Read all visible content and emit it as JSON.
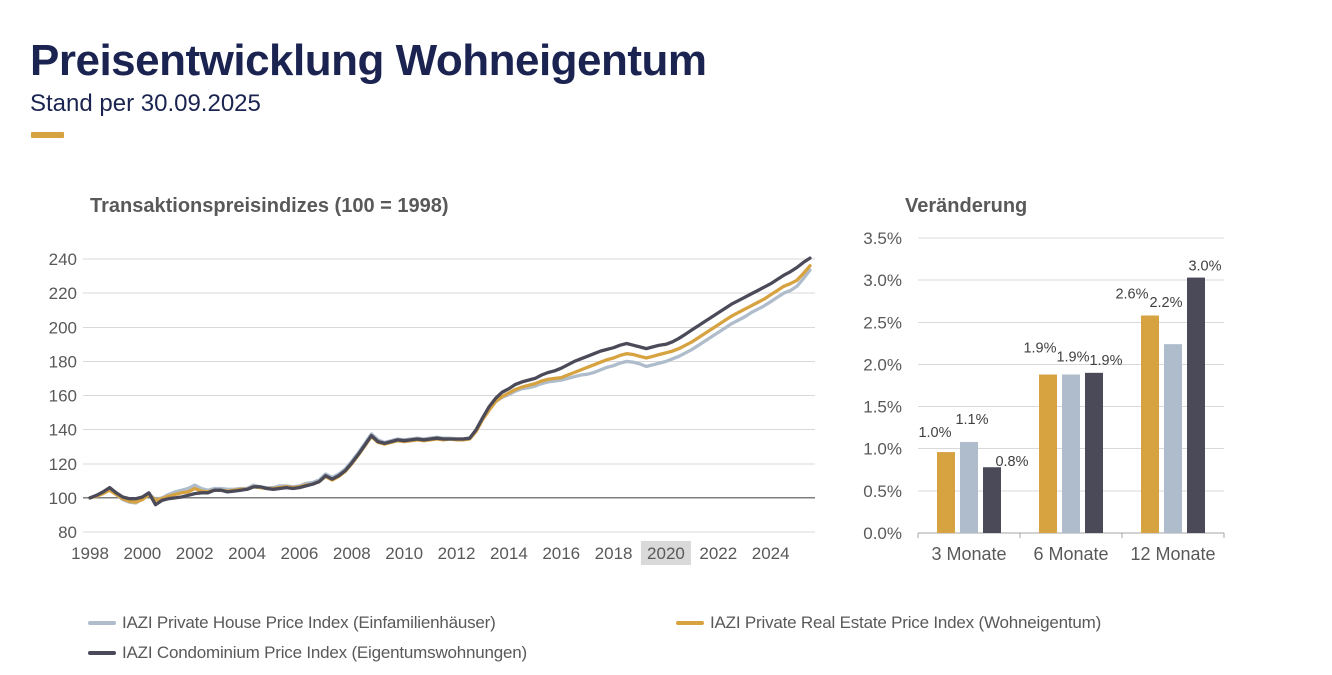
{
  "header": {
    "title": "Preisentwicklung Wohneigentum",
    "subtitle": "Stand per 30.09.2025"
  },
  "colors": {
    "navy": "#1b2451",
    "text_gray": "#595959",
    "bar_label_gray": "#404040",
    "grid": "#d9d9d9",
    "baseline_gray": "#7f7f7f",
    "axis_gray": "#a6a6a6",
    "tick_highlight_bg": "#d9d9d9",
    "house": "#aebccb",
    "realestate": "#d7a240",
    "condo": "#4a4a59"
  },
  "chart_data": [
    {
      "type": "line",
      "title": "Transaktionspreisindizes (100 = 1998)",
      "x_start": 1998,
      "x_step": 0.25,
      "x_end": 2025.5,
      "ylim": [
        80,
        240
      ],
      "y_tick_step": 20,
      "y_tick_labels": [
        "240",
        "220",
        "200",
        "180",
        "160",
        "140",
        "120",
        "100",
        "80"
      ],
      "x_tick_labels": [
        "1998",
        "2000",
        "2002",
        "2004",
        "2006",
        "2008",
        "2010",
        "2012",
        "2014",
        "2016",
        "2018",
        "2020",
        "2022",
        "2024"
      ],
      "highlighted_x_tick": "2020",
      "baseline_value": 100,
      "grid": true,
      "series": [
        {
          "name": "IAZI Private House Price Index (Einfamilienhäuser)",
          "color_key": "house",
          "values": [
            100,
            101,
            103,
            105,
            102,
            99,
            97.5,
            97,
            99.5,
            102.5,
            99,
            100,
            102,
            103.5,
            104.5,
            105.5,
            107.5,
            105.5,
            104.5,
            105.5,
            105.5,
            105,
            105,
            105.5,
            105.5,
            107.5,
            106.5,
            106,
            106,
            107,
            107,
            106.5,
            107,
            108.5,
            109,
            110.5,
            114,
            112,
            114,
            117,
            121.5,
            126.5,
            132,
            137.5,
            134,
            132.5,
            133.5,
            134.5,
            134,
            134.5,
            135,
            134.5,
            135,
            135.5,
            135,
            135,
            134.5,
            134.5,
            135,
            139.5,
            146.5,
            152,
            156.5,
            159,
            160.5,
            162.5,
            164,
            164.5,
            165.5,
            167,
            168,
            168.5,
            169,
            170,
            171,
            172,
            172.5,
            173.5,
            175,
            176.5,
            177.5,
            179,
            180,
            179.5,
            178.5,
            177,
            178,
            179,
            180,
            181.5,
            183,
            185,
            187,
            189.5,
            192,
            194.5,
            197,
            199.5,
            202,
            204,
            206,
            208.5,
            210.5,
            212.5,
            215,
            217.5,
            220,
            221.5,
            224,
            228.5,
            233.5
          ]
        },
        {
          "name": "IAZI Private Real Estate Price Index (Wohneigentum)",
          "color_key": "realestate",
          "values": [
            100,
            101,
            102.5,
            104.5,
            102,
            99.5,
            98,
            97.5,
            99,
            102,
            98.5,
            99.5,
            101,
            102,
            103,
            103.5,
            105.5,
            104,
            103.5,
            104.5,
            104.5,
            104,
            104.5,
            105,
            105,
            106.5,
            106,
            105.5,
            105.5,
            106,
            106.5,
            106,
            106.5,
            107.5,
            108,
            109.5,
            112.5,
            110.5,
            112.5,
            115.5,
            120,
            125,
            130.5,
            136,
            132.5,
            131.5,
            132.5,
            133.5,
            133,
            133.5,
            134,
            133.5,
            134,
            134.5,
            134,
            134.5,
            134,
            134,
            134.5,
            139,
            146,
            151.5,
            156.5,
            159.5,
            161.5,
            163.5,
            165,
            166,
            167,
            168.5,
            169.5,
            170,
            170.5,
            172,
            173.5,
            175,
            176.5,
            178,
            179.5,
            181,
            182,
            183.5,
            184.5,
            184,
            183,
            182,
            183,
            184,
            185,
            186,
            187.5,
            189.5,
            191.5,
            194,
            196.5,
            199,
            201.5,
            204,
            206.5,
            208.5,
            210.5,
            212.5,
            214.5,
            216.5,
            219,
            221.5,
            224,
            225.5,
            227.5,
            231.5,
            236
          ]
        },
        {
          "name": "IAZI Condominium Price Index (Eigentumswohnungen)",
          "color_key": "condo",
          "values": [
            100,
            101.5,
            103.5,
            106,
            103,
            100.5,
            99.5,
            99.5,
            100.5,
            103,
            96,
            98.5,
            99.5,
            100,
            100.5,
            101.5,
            102.5,
            103,
            103,
            104.5,
            104.5,
            103.5,
            104,
            104.5,
            105,
            106.5,
            106.5,
            105.5,
            105,
            105.5,
            106,
            105.5,
            106,
            107,
            108,
            109.5,
            113,
            111,
            113,
            116,
            120.5,
            125.5,
            131,
            136.5,
            133,
            132,
            133,
            134,
            133.5,
            134,
            134.5,
            134,
            134.5,
            135,
            134.5,
            134.5,
            134.5,
            134.5,
            135,
            140,
            147,
            153.5,
            158.5,
            162,
            164,
            166.5,
            168,
            169,
            170,
            172,
            173.5,
            174.5,
            176,
            178,
            180,
            181.5,
            183,
            184.5,
            186,
            187,
            188,
            189.5,
            190.5,
            189.5,
            188.5,
            187.5,
            188.5,
            189.5,
            190,
            191.5,
            193.5,
            196,
            198.5,
            201,
            203.5,
            206,
            208.5,
            211,
            213.5,
            215.5,
            217.5,
            219.5,
            221.5,
            223.5,
            225.5,
            228,
            230.5,
            232.5,
            235,
            238,
            240.5
          ]
        }
      ]
    },
    {
      "type": "bar",
      "title": "Veränderung",
      "categories": [
        "3 Monate",
        "6 Monate",
        "12 Monate"
      ],
      "ylim": [
        0,
        3.5
      ],
      "y_tick_labels": [
        "3.5%",
        "3.0%",
        "2.5%",
        "2.0%",
        "1.5%",
        "1.0%",
        "0.5%",
        "0.0%"
      ],
      "grid": true,
      "series": [
        {
          "name": "IAZI Private Real Estate Price Index (Wohneigentum)",
          "color_key": "realestate",
          "values": [
            0.96,
            1.88,
            2.58
          ],
          "labels": [
            "1.0%",
            "1.9%",
            "2.6%"
          ]
        },
        {
          "name": "IAZI Private House Price Index (Einfamilienhäuser)",
          "color_key": "house",
          "values": [
            1.08,
            1.88,
            2.24
          ],
          "labels": [
            "1.1%",
            "1.9%",
            "2.2%"
          ]
        },
        {
          "name": "IAZI Condominium Price Index (Eigentumswohnungen)",
          "color_key": "condo",
          "values": [
            0.78,
            1.9,
            3.03
          ],
          "labels": [
            "0.8%",
            "1.9%",
            "3.0%"
          ]
        }
      ]
    }
  ],
  "legend": {
    "items": [
      {
        "label": "IAZI Private House Price Index (Einfamilienhäuser)",
        "color_key": "house"
      },
      {
        "label": "IAZI Private Real Estate Price Index (Wohneigentum)",
        "color_key": "realestate"
      },
      {
        "label": "IAZI Condominium Price Index (Eigentumswohnungen)",
        "color_key": "condo"
      }
    ]
  }
}
